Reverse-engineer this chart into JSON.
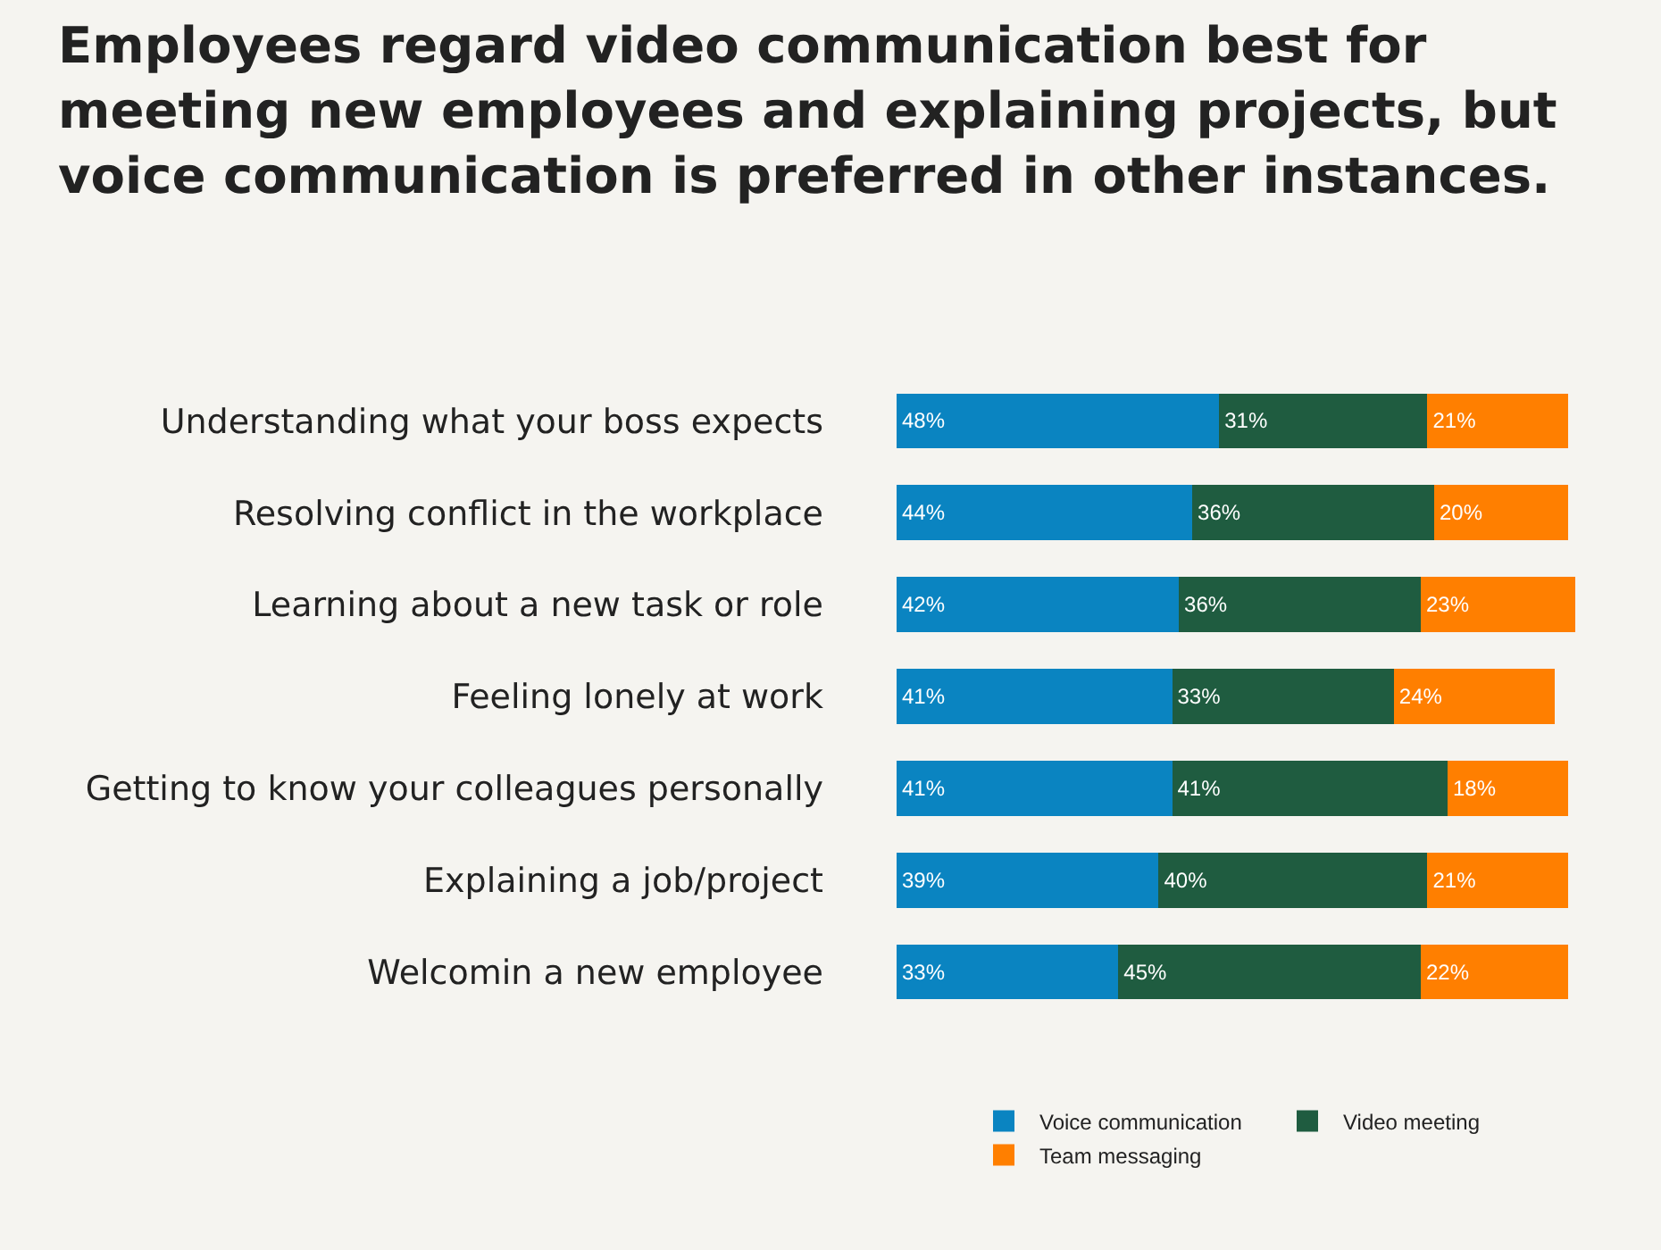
{
  "chart_data": {
    "type": "bar",
    "orientation": "horizontal",
    "stacked": true,
    "title": "Employees regard video communication best for meeting new employees and explaining projects, but voice communication is preferred in other instances.",
    "categories": [
      "Understanding what your boss expects",
      "Resolving conflict in the workplace",
      "Learning about a new task or role",
      "Feeling lonely at work",
      "Getting to know your colleagues personally",
      "Explaining a job/project",
      "Welcomin a new employee"
    ],
    "series": [
      {
        "name": "Voice communication",
        "color": "#0a84c1",
        "values": [
          48,
          44,
          42,
          41,
          41,
          39,
          33
        ],
        "value_labels": [
          "48%",
          "44%",
          "42%",
          "41%",
          "41%",
          "39%",
          "33%"
        ]
      },
      {
        "name": "Video meeting",
        "color": "#1f5c40",
        "values": [
          31,
          36,
          36,
          33,
          41,
          40,
          45
        ],
        "value_labels": [
          "31%",
          "36%",
          "36%",
          "33%",
          "41%",
          "40%",
          "45%"
        ]
      },
      {
        "name": "Team messaging",
        "color": "#ff7f00",
        "values": [
          21,
          20,
          23,
          24,
          18,
          21,
          22
        ],
        "value_labels": [
          "21%",
          "20%",
          "23%",
          "24%",
          "18%",
          "21%",
          "22%"
        ]
      }
    ],
    "xlim": [
      0,
      101
    ],
    "tick_labels": "y",
    "legend": "bottom right"
  }
}
